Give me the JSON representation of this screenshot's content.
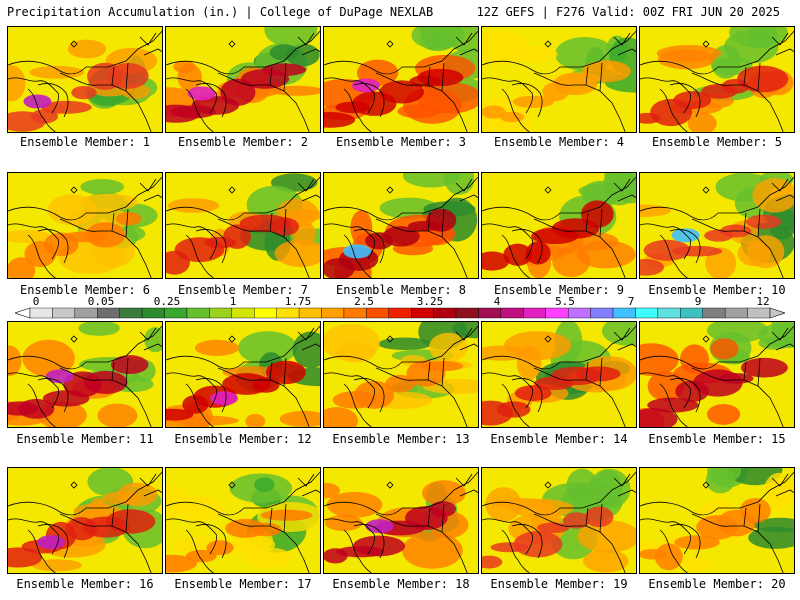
{
  "header": {
    "title": "Precipitation Accumulation (in.) | College of DuPage NEXLAB",
    "run_info": "12Z GEFS | F276 Valid: 00Z FRI JUN 20 2025"
  },
  "colorbar": {
    "tick_labels": [
      "0",
      "0.05",
      "0.25",
      "1",
      "1.75",
      "2.5",
      "3.25",
      "4",
      "5.5",
      "7",
      "9",
      "12"
    ],
    "colors": [
      "#e6e6e6",
      "#c8c8c8",
      "#a0a0a0",
      "#6e6e6e",
      "#3a7a3a",
      "#2e8b2e",
      "#3aa82e",
      "#66c02e",
      "#9ad21e",
      "#d2e600",
      "#ffff00",
      "#ffe000",
      "#ffc000",
      "#ffa000",
      "#ff7a00",
      "#ff5000",
      "#f02000",
      "#d00000",
      "#b00010",
      "#901020",
      "#a01050",
      "#c01080",
      "#e020c0",
      "#ff40ff",
      "#c070ff",
      "#8080ff",
      "#40c0ff",
      "#40ffff",
      "#60e0e0",
      "#40c0c0",
      "#808080",
      "#a0a0a0",
      "#c0c0c0"
    ]
  },
  "members": [
    {
      "caption": "Ensemble Member: 1"
    },
    {
      "caption": "Ensemble Member: 2"
    },
    {
      "caption": "Ensemble Member: 3"
    },
    {
      "caption": "Ensemble Member: 4"
    },
    {
      "caption": "Ensemble Member: 5"
    },
    {
      "caption": "Ensemble Member: 6"
    },
    {
      "caption": "Ensemble Member: 7"
    },
    {
      "caption": "Ensemble Member: 8"
    },
    {
      "caption": "Ensemble Member: 9"
    },
    {
      "caption": "Ensemble Member: 10"
    },
    {
      "caption": "Ensemble Member: 11"
    },
    {
      "caption": "Ensemble Member: 12"
    },
    {
      "caption": "Ensemble Member: 13"
    },
    {
      "caption": "Ensemble Member: 14"
    },
    {
      "caption": "Ensemble Member: 15"
    },
    {
      "caption": "Ensemble Member: 16"
    },
    {
      "caption": "Ensemble Member: 17"
    },
    {
      "caption": "Ensemble Member: 18"
    },
    {
      "caption": "Ensemble Member: 19"
    },
    {
      "caption": "Ensemble Member: 20"
    }
  ]
}
